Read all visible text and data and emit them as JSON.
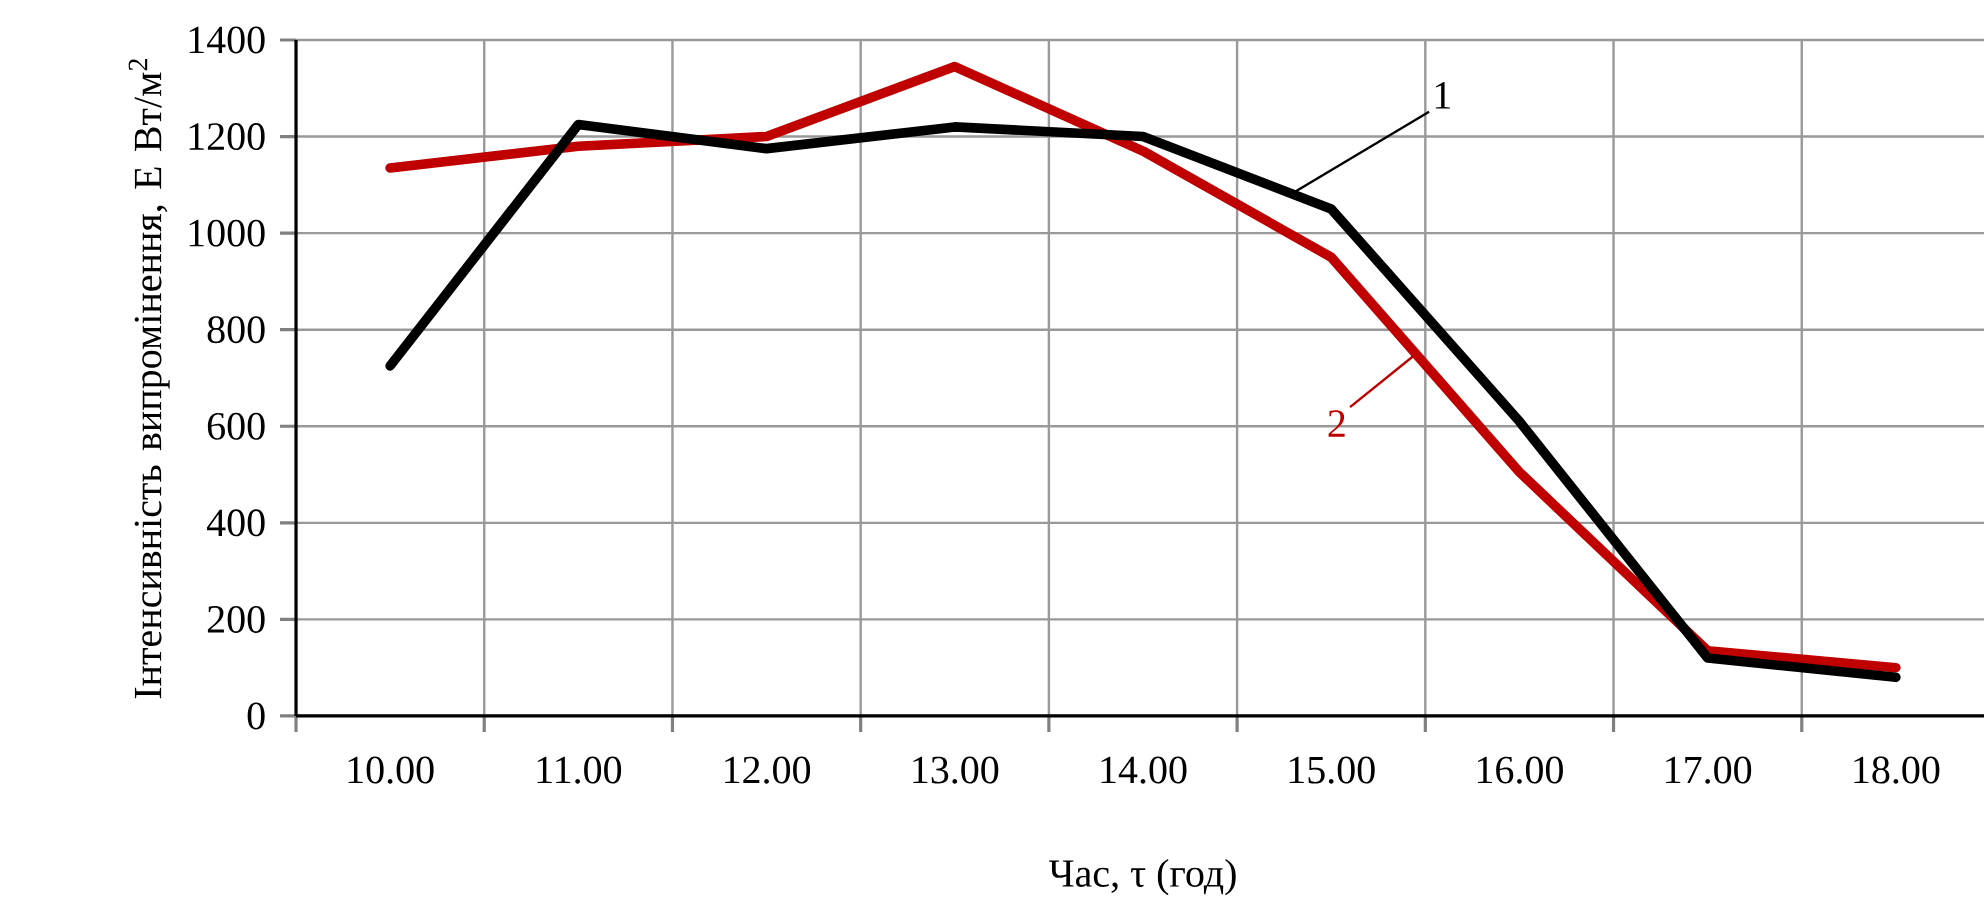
{
  "chart_data": {
    "type": "line",
    "xlabel": "Час, τ (год)",
    "ylabel": "Інтенсивність випромінення, Е Вт/м$^{2}$",
    "categories": [
      "10.00",
      "11.00",
      "12.00",
      "13.00",
      "14.00",
      "15.00",
      "16.00",
      "17.00",
      "18.00"
    ],
    "series": [
      {
        "name": "1",
        "color": "#000000",
        "values": [
          725,
          1225,
          1175,
          1220,
          1200,
          1050,
          610,
          120,
          80
        ]
      },
      {
        "name": "2",
        "color": "#c00000",
        "values": [
          1135,
          1180,
          1200,
          1345,
          1170,
          950,
          505,
          135,
          100
        ]
      }
    ],
    "ylim": [
      0,
      1400
    ],
    "yticks": [
      0,
      200,
      400,
      600,
      800,
      1000,
      1200,
      1400
    ],
    "grid": true,
    "marker": "none",
    "line_style": "solid"
  }
}
